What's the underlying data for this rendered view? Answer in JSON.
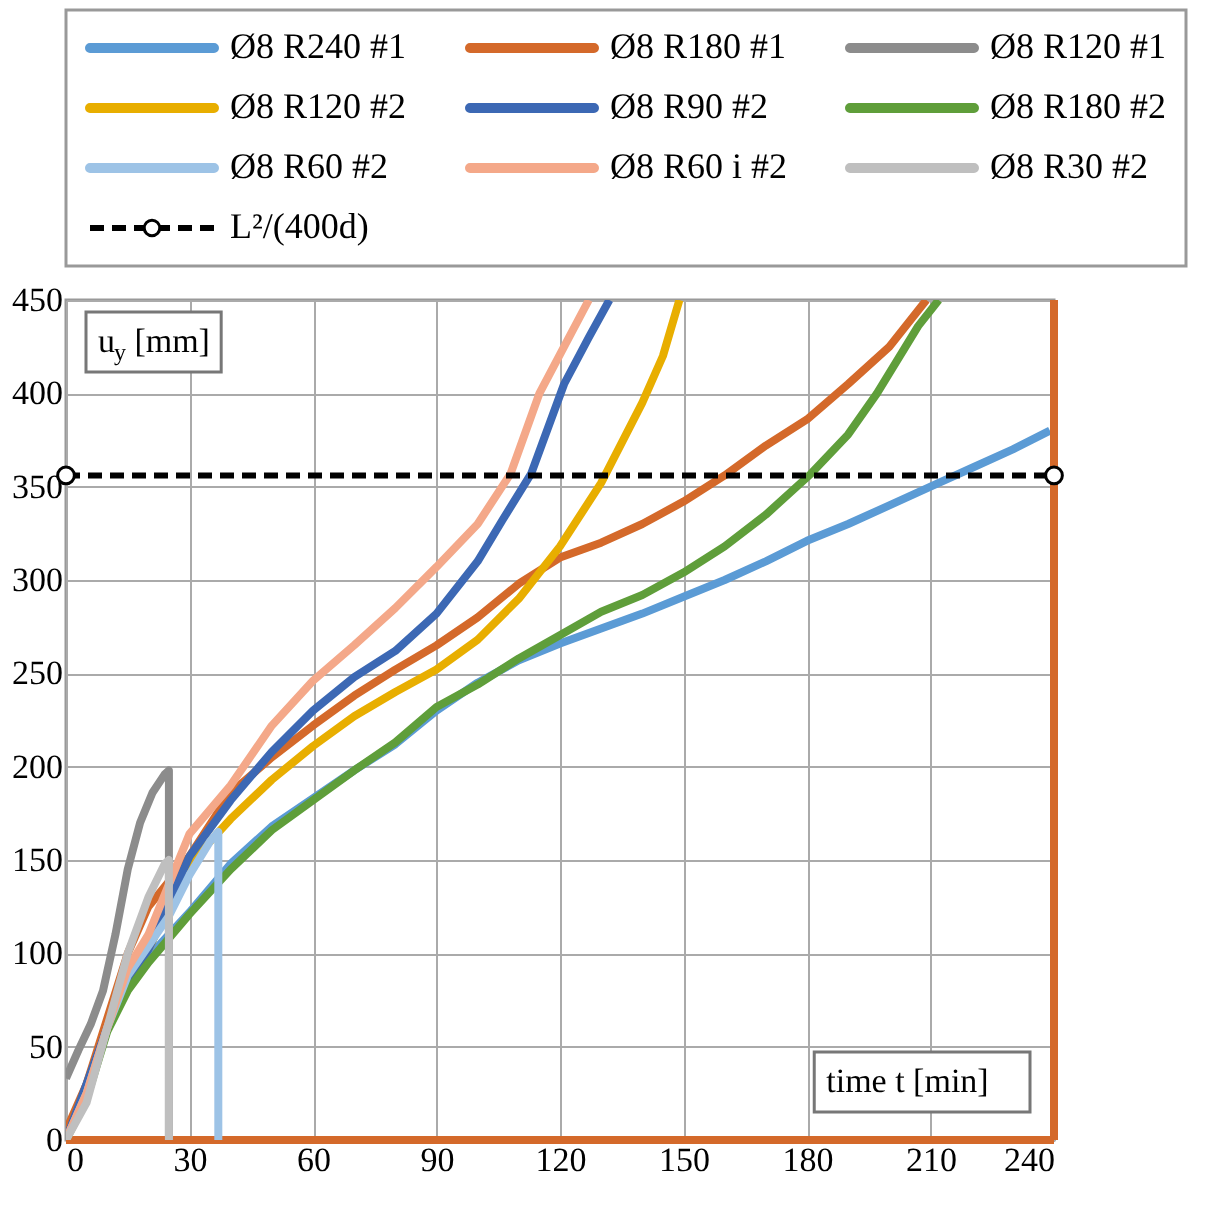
{
  "chart_data": {
    "type": "line",
    "xlabel": "time t [min]",
    "ylabel": "u$_{y}$ [mm]",
    "xlim": [
      0,
      240
    ],
    "ylim": [
      0,
      450
    ],
    "xticks": [
      0,
      30,
      60,
      90,
      120,
      150,
      180,
      210,
      240
    ],
    "yticks": [
      0,
      50,
      100,
      150,
      200,
      250,
      300,
      350,
      400,
      450
    ],
    "grid": true,
    "legend": "top",
    "ref_lines": [
      {
        "axis": "x",
        "value": 240,
        "color": "#d4692a"
      },
      {
        "axis": "y",
        "value": 0,
        "color": "#d4692a"
      }
    ],
    "line_style": "solid",
    "marker": "none",
    "series": [
      {
        "name": "Ø8 R240 #1",
        "color": "#5b9bd5",
        "x": [
          0,
          10,
          15,
          20,
          30,
          40,
          50,
          60,
          70,
          80,
          90,
          100,
          110,
          120,
          130,
          140,
          150,
          160,
          170,
          180,
          190,
          200,
          210,
          220,
          230,
          239
        ],
        "values": [
          0,
          60,
          82,
          98,
          122,
          148,
          168,
          183,
          198,
          212,
          230,
          245,
          257,
          266,
          274,
          282,
          291,
          300,
          310,
          321,
          330,
          340,
          350,
          360,
          370,
          380
        ]
      },
      {
        "name": "Ø8 R180 #1",
        "color": "#d4692a",
        "x": [
          0,
          5,
          10,
          15,
          20,
          30,
          40,
          50,
          60,
          70,
          80,
          90,
          100,
          110,
          120,
          130,
          140,
          150,
          160,
          170,
          180,
          190,
          200,
          209
        ],
        "values": [
          5,
          30,
          65,
          100,
          125,
          152,
          186,
          205,
          222,
          238,
          252,
          265,
          280,
          298,
          312,
          320,
          330,
          342,
          356,
          372,
          386,
          405,
          425,
          450
        ]
      },
      {
        "name": "Ø8 R120 #1",
        "color": "#8c8c8c",
        "x": [
          0,
          3,
          6,
          9,
          12,
          15,
          18,
          21,
          24,
          25,
          25
        ],
        "values": [
          33,
          48,
          62,
          80,
          110,
          145,
          170,
          186,
          196,
          198,
          0
        ]
      },
      {
        "name": "Ø8 R120 #2",
        "color": "#e8ae00",
        "x": [
          20,
          30,
          40,
          50,
          60,
          70,
          80,
          90,
          100,
          110,
          120,
          130,
          140,
          145,
          149
        ],
        "values": [
          102,
          148,
          172,
          193,
          211,
          227,
          240,
          252,
          268,
          290,
          318,
          352,
          395,
          420,
          450
        ]
      },
      {
        "name": "Ø8 R90 #2",
        "color": "#3c68b4",
        "x": [
          0,
          10,
          15,
          20,
          30,
          40,
          50,
          60,
          70,
          80,
          90,
          100,
          106,
          113,
          121,
          127,
          132
        ],
        "values": [
          0,
          60,
          85,
          102,
          152,
          182,
          208,
          230,
          248,
          262,
          282,
          310,
          332,
          357,
          405,
          430,
          450
        ]
      },
      {
        "name": "Ø8 R180 #2",
        "color": "#5f9e3a",
        "x": [
          0,
          5,
          10,
          15,
          20,
          30,
          40,
          50,
          60,
          70,
          80,
          90,
          100,
          110,
          122,
          130,
          140,
          150,
          160,
          170,
          181,
          190,
          197,
          207,
          212
        ],
        "values": [
          0,
          22,
          58,
          80,
          95,
          121,
          145,
          166,
          182,
          198,
          213,
          232,
          244,
          258,
          273,
          283,
          292,
          304,
          318,
          335,
          357,
          378,
          400,
          436,
          450
        ]
      },
      {
        "name": "Ø8 R60 #2",
        "color": "#9dc3e6",
        "x": [
          0,
          5,
          10,
          15,
          20,
          25,
          30,
          35,
          37,
          37
        ],
        "values": [
          0,
          25,
          60,
          88,
          104,
          120,
          142,
          160,
          165,
          0
        ]
      },
      {
        "name": "Ø8 R60 i #2",
        "color": "#f4a889",
        "x": [
          0,
          5,
          10,
          15,
          20,
          30,
          40,
          50,
          60,
          70,
          80,
          90,
          100,
          108,
          115,
          121,
          127
        ],
        "values": [
          0,
          25,
          60,
          92,
          110,
          164,
          190,
          222,
          246,
          265,
          285,
          307,
          330,
          357,
          400,
          425,
          450
        ]
      },
      {
        "name": "Ø8 R30 #2",
        "color": "#bfbfbf",
        "x": [
          0,
          5,
          10,
          15,
          20,
          24,
          25,
          25
        ],
        "values": [
          0,
          20,
          60,
          100,
          130,
          148,
          150,
          0
        ]
      },
      {
        "name": "L²/(400d)",
        "color": "#000000",
        "x": [
          0,
          240
        ],
        "values": [
          356,
          356
        ],
        "line_style": "dashed",
        "marker": "circle"
      }
    ]
  }
}
